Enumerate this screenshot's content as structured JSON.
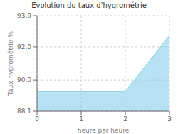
{
  "chart_data": {
    "type": "area",
    "title": "Evolution du taux d'hygrométrie",
    "xlabel": "heure par heure",
    "ylabel": "Taux hygrométrie %",
    "x": [
      0,
      2,
      3
    ],
    "values": [
      89.3,
      89.3,
      92.7
    ],
    "xlim": [
      0,
      3
    ],
    "xticks": [
      0,
      1,
      2,
      3
    ],
    "ylim": [
      88.1,
      93.9
    ],
    "yticks": [
      88.1,
      {
        "value": 90.0,
        "label": "90.0"
      },
      {
        "value": 92.0,
        "label": "92.0"
      },
      93.9
    ],
    "color": "#87CEEB",
    "grid": true
  }
}
